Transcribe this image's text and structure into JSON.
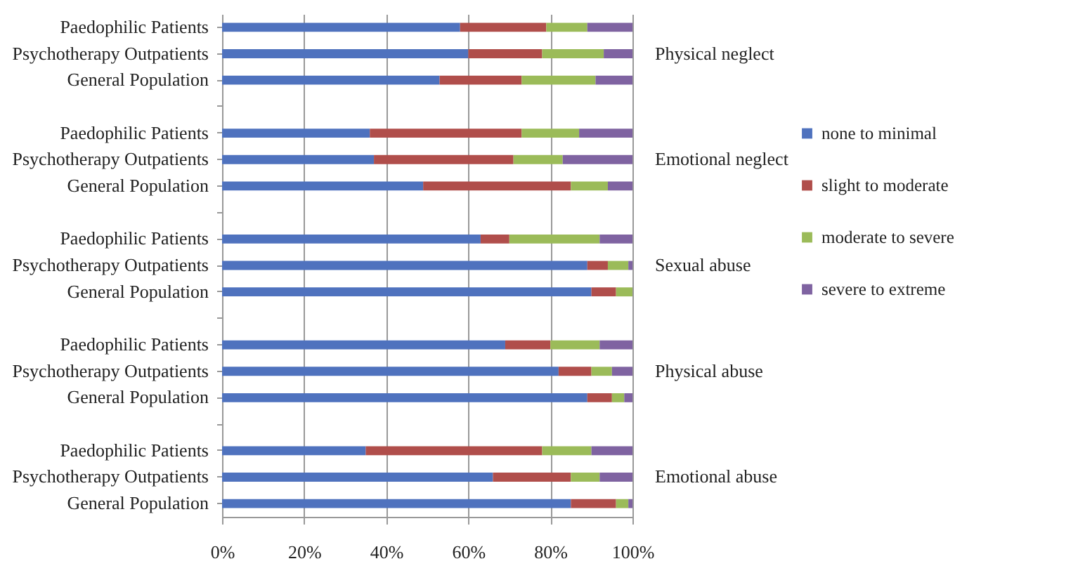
{
  "chart_data": {
    "type": "bar",
    "orientation": "horizontal",
    "stacked": true,
    "categories": [
      "Paedophilic Patients",
      "Psychotherapy Outpatients",
      "General Population",
      "Paedophilic Patients",
      "Psychotherapy Outpatients",
      "General Population",
      "Paedophilic Patients",
      "Psychotherapy Outpatients",
      "General Population",
      "Paedophilic Patients",
      "Psychotherapy Outpatients",
      "General Population",
      "Paedophilic Patients",
      "Psychotherapy Outpatients",
      "General Population"
    ],
    "annotations": [
      "Physical neglect",
      "Emotional neglect",
      "Sexual abuse",
      "Physical abuse",
      "Emotional abuse"
    ],
    "xlim": [
      0,
      100
    ],
    "xticks": [
      {
        "value": 0,
        "label": "0%"
      },
      {
        "value": 20,
        "label": "20%"
      },
      {
        "value": 40,
        "label": "40%"
      },
      {
        "value": 60,
        "label": "60%"
      },
      {
        "value": 80,
        "label": "80%"
      },
      {
        "value": 100,
        "label": "100%"
      }
    ],
    "grid": "x",
    "legend": "right",
    "series": [
      {
        "name": "none to minimal",
        "color": "#4f72be",
        "values": [
          58,
          60,
          53,
          36,
          37,
          49,
          63,
          89,
          90,
          69,
          82,
          89,
          35,
          66,
          85
        ]
      },
      {
        "name": "slight to moderate",
        "color": "#b04e4b",
        "values": [
          21,
          18,
          20,
          37,
          34,
          36,
          7,
          5,
          6,
          11,
          8,
          6,
          43,
          19,
          11
        ]
      },
      {
        "name": "moderate to severe",
        "color": "#9bbb59",
        "values": [
          10,
          15,
          18,
          14,
          12,
          9,
          22,
          5,
          4,
          12,
          5,
          3,
          12,
          7,
          3
        ]
      },
      {
        "name": "severe to extreme",
        "color": "#7f63a1",
        "values": [
          11,
          7,
          9,
          13,
          17,
          6,
          8,
          1,
          0,
          8,
          5,
          2,
          10,
          8,
          1
        ]
      }
    ]
  }
}
